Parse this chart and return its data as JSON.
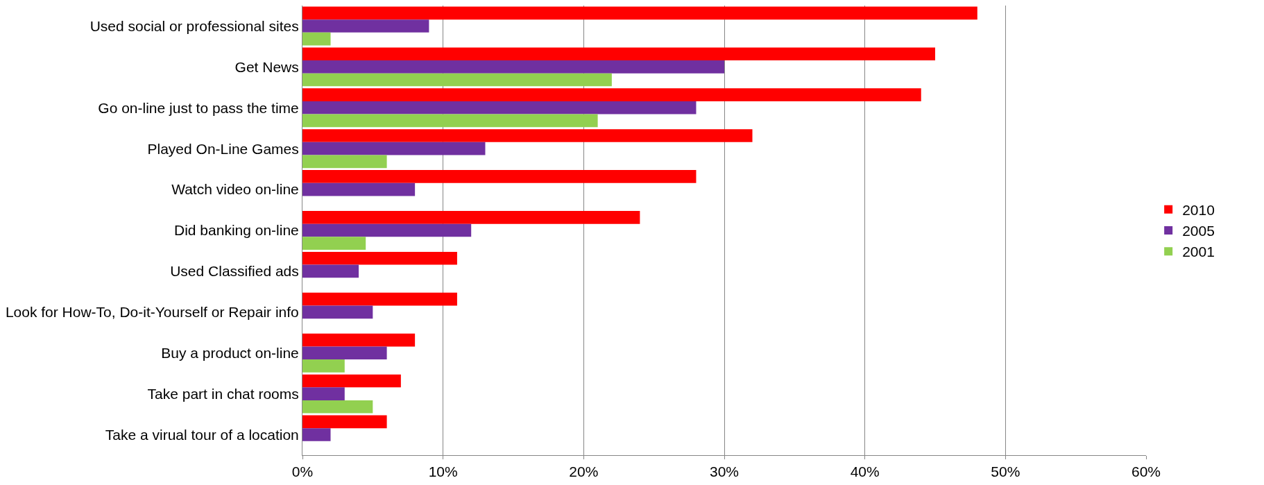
{
  "chart_data": {
    "type": "bar",
    "orientation": "horizontal",
    "categories": [
      "Used social or professional sites",
      "Get News",
      "Go on-line just to pass the time",
      "Played On-Line Games",
      "Watch video on-line",
      "Did banking on-line",
      "Used Classified ads",
      "Look for How-To, Do-it-Yourself or Repair info",
      "Buy a product on-line",
      "Take part in chat rooms",
      "Take a virual tour of a location"
    ],
    "series": [
      {
        "name": "2010",
        "color": "#ff0000",
        "values": [
          48,
          45,
          44,
          32,
          28,
          24,
          11,
          11,
          8,
          7,
          6
        ]
      },
      {
        "name": "2005",
        "color": "#7030a0",
        "values": [
          9,
          30,
          28,
          13,
          8,
          12,
          4,
          5,
          6,
          3,
          2
        ]
      },
      {
        "name": "2001",
        "color": "#92d050",
        "values": [
          2,
          22,
          21,
          6,
          null,
          4.5,
          null,
          null,
          3,
          5,
          null
        ]
      }
    ],
    "xlim": [
      0,
      60
    ],
    "xticks": [
      {
        "value": 0,
        "label": "0%"
      },
      {
        "value": 10,
        "label": "10%"
      },
      {
        "value": 20,
        "label": "20%"
      },
      {
        "value": 30,
        "label": "30%"
      },
      {
        "value": 40,
        "label": "40%"
      },
      {
        "value": 50,
        "label": "50%"
      },
      {
        "value": 60,
        "label": "60%"
      }
    ],
    "grid": "x",
    "legend": "right"
  }
}
